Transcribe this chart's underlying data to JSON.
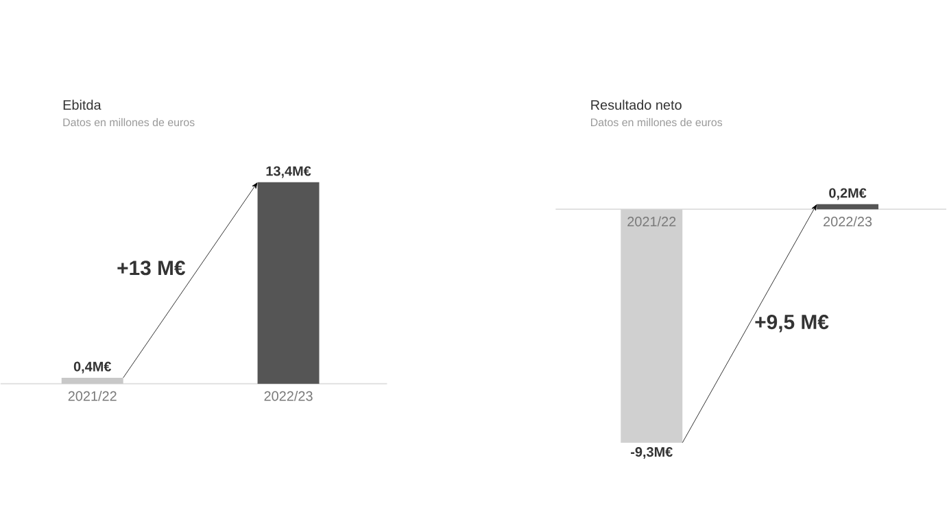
{
  "chart_data": [
    {
      "type": "bar",
      "title": "Ebitda",
      "subtitle": "Datos en millones de euros",
      "categories": [
        "2021/22",
        "2022/23"
      ],
      "values": [
        0.4,
        13.4
      ],
      "colors": [
        "#c8c8c8",
        "#555555"
      ],
      "value_labels": [
        "0,4M€",
        "13,4M€"
      ],
      "annotations": [
        "+13 M€"
      ]
    },
    {
      "type": "bar",
      "title": "Resultado neto",
      "subtitle": "Datos en millones de euros",
      "categories": [
        "2021/22",
        "2022/23"
      ],
      "values": [
        -9.3,
        0.2
      ],
      "colors": [
        "#d0d0d0",
        "#555555"
      ],
      "value_labels": [
        "-9,3M€",
        "0,2M€"
      ],
      "annotations": [
        "+9,5 M€"
      ]
    }
  ]
}
